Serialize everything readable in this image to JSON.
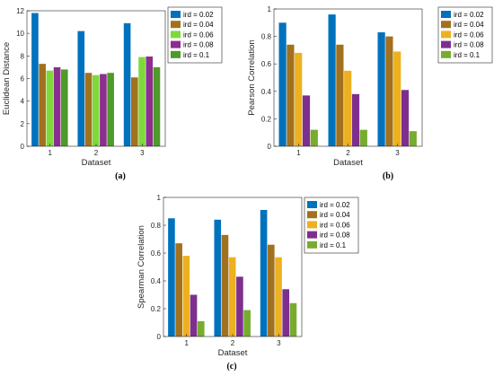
{
  "chart_data": [
    {
      "panel": "(a)",
      "type": "bar",
      "xlabel": "Dataset",
      "ylabel": "Euclidean Distance",
      "categories": [
        "1",
        "2",
        "3"
      ],
      "ylim": [
        0,
        12
      ],
      "yticks": [
        "0",
        "2",
        "4",
        "6",
        "8",
        "10",
        "12"
      ],
      "series": [
        {
          "name": "ird = 0.02",
          "color": "#0072BD",
          "values": [
            11.8,
            10.2,
            10.9
          ]
        },
        {
          "name": "ird = 0.04",
          "color": "#A2711E",
          "values": [
            7.3,
            6.5,
            6.1
          ]
        },
        {
          "name": "ird = 0.06",
          "color": "#7FD83C",
          "values": [
            6.7,
            6.3,
            7.9
          ]
        },
        {
          "name": "ird = 0.08",
          "color": "#8B2E8E",
          "values": [
            7.0,
            6.4,
            7.95
          ]
        },
        {
          "name": "ird = 0.1",
          "color": "#4E9A2A",
          "values": [
            6.8,
            6.5,
            7.0
          ]
        }
      ],
      "legend": "top-right",
      "grid": false
    },
    {
      "panel": "(b)",
      "type": "bar",
      "xlabel": "Dataset",
      "ylabel": "Pearson Correlation",
      "categories": [
        "1",
        "2",
        "3"
      ],
      "ylim": [
        0,
        1
      ],
      "yticks": [
        "0",
        "0.2",
        "0.4",
        "0.6",
        "0.8",
        "1"
      ],
      "series": [
        {
          "name": "ird = 0.02",
          "color": "#0072BD",
          "values": [
            0.9,
            0.96,
            0.83
          ]
        },
        {
          "name": "ird = 0.04",
          "color": "#A2711E",
          "values": [
            0.74,
            0.74,
            0.8
          ]
        },
        {
          "name": "ird = 0.06",
          "color": "#EDB120",
          "values": [
            0.68,
            0.55,
            0.69
          ]
        },
        {
          "name": "ird = 0.08",
          "color": "#7E2F8E",
          "values": [
            0.37,
            0.38,
            0.41
          ]
        },
        {
          "name": "ird = 0.1",
          "color": "#77AC30",
          "values": [
            0.12,
            0.12,
            0.11
          ]
        }
      ],
      "legend": "top-right",
      "grid": false
    },
    {
      "panel": "(c)",
      "type": "bar",
      "xlabel": "Dataset",
      "ylabel": "Spearman Correlation",
      "categories": [
        "1",
        "2",
        "3"
      ],
      "ylim": [
        0,
        1
      ],
      "yticks": [
        "0",
        "0.2",
        "0.4",
        "0.6",
        "0.8",
        "1"
      ],
      "series": [
        {
          "name": "ird = 0.02",
          "color": "#0072BD",
          "values": [
            0.85,
            0.84,
            0.91
          ]
        },
        {
          "name": "ird = 0.04",
          "color": "#A2711E",
          "values": [
            0.67,
            0.73,
            0.66
          ]
        },
        {
          "name": "ird = 0.06",
          "color": "#EDB120",
          "values": [
            0.58,
            0.57,
            0.57
          ]
        },
        {
          "name": "ird = 0.08",
          "color": "#7E2F8E",
          "values": [
            0.3,
            0.43,
            0.34
          ]
        },
        {
          "name": "ird = 0.1",
          "color": "#77AC30",
          "values": [
            0.11,
            0.19,
            0.24
          ]
        }
      ],
      "legend": "top-right",
      "grid": false
    }
  ]
}
